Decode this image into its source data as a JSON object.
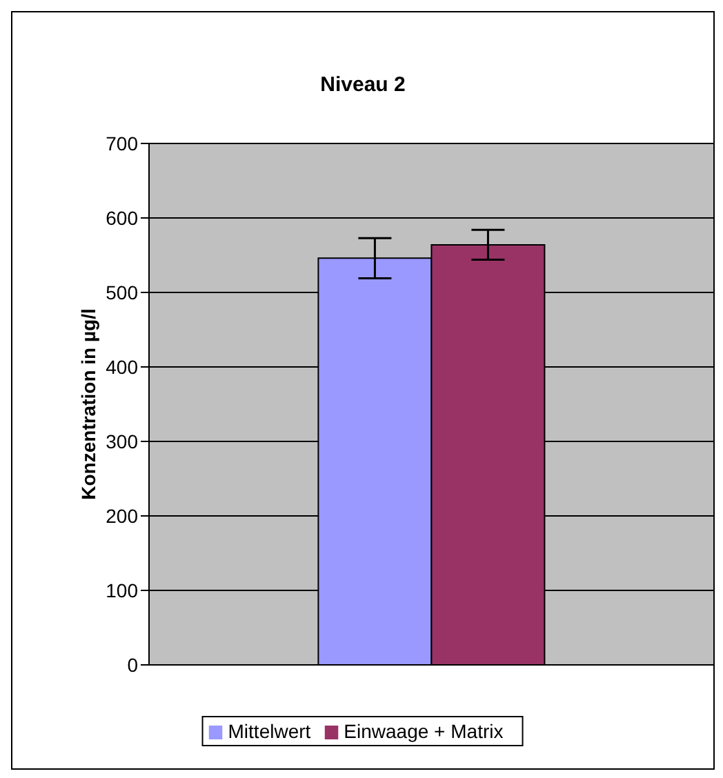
{
  "chart_data": {
    "type": "bar",
    "title": "Niveau 2",
    "ylabel": "Konzentration in µg/l",
    "categories": [
      null
    ],
    "series": [
      {
        "name": "Mittelwert",
        "color": "#9999ff",
        "values": [
          546
        ],
        "errors": [
          27
        ]
      },
      {
        "name": "Einwaage + Matrix",
        "color": "#993366",
        "values": [
          564
        ],
        "errors": [
          20
        ]
      }
    ],
    "ylim": [
      0,
      700
    ],
    "yticks": [
      0,
      100,
      200,
      300,
      400,
      500,
      600,
      700
    ],
    "grid": "y",
    "legend": "bottom"
  }
}
